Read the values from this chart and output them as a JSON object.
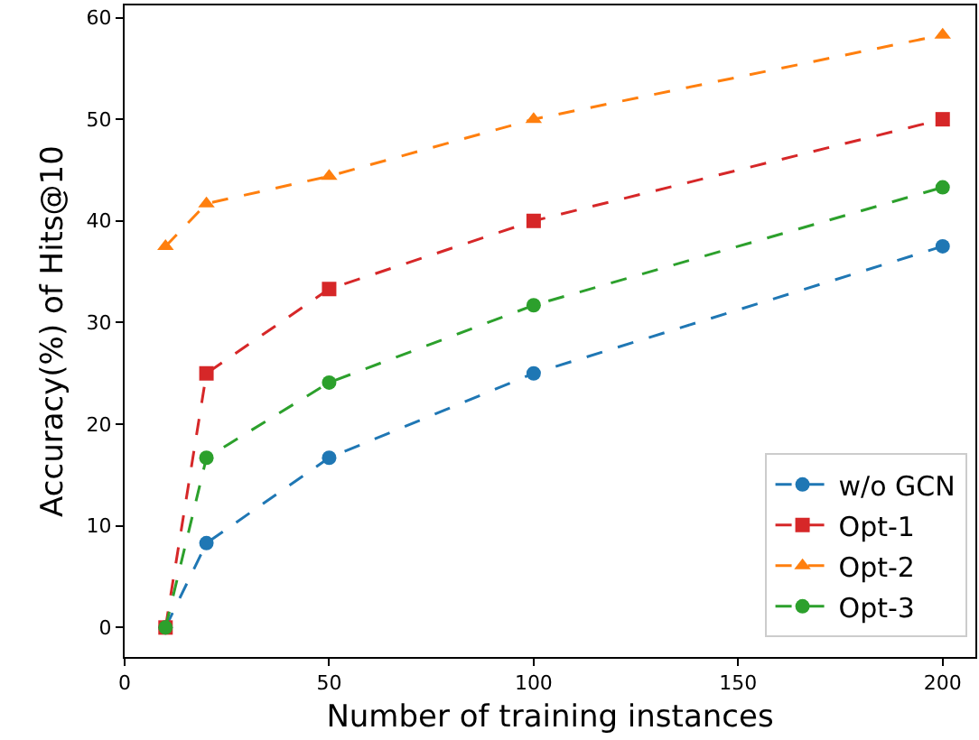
{
  "chart_data": {
    "type": "line",
    "xlabel": "Number of training instances",
    "ylabel": "Accuracy(%) of Hits@10",
    "x": [
      10,
      20,
      50,
      100,
      200
    ],
    "series": [
      {
        "name": "w/o GCN",
        "color": "#1f77b4",
        "marker": "circle",
        "values": [
          0,
          8.3,
          16.7,
          25,
          37.5
        ]
      },
      {
        "name": "Opt-1",
        "color": "#d62728",
        "marker": "square",
        "values": [
          0,
          25,
          33.3,
          40,
          50
        ]
      },
      {
        "name": "Opt-2",
        "color": "#ff7f0e",
        "marker": "triangle",
        "values": [
          37.5,
          41.7,
          44.4,
          50,
          58.3
        ]
      },
      {
        "name": "Opt-3",
        "color": "#2ca02c",
        "marker": "circle",
        "values": [
          0,
          16.7,
          24.1,
          31.7,
          43.3
        ]
      }
    ],
    "xlim": [
      0,
      208
    ],
    "xticks": [
      0,
      50,
      100,
      150,
      200
    ],
    "ylim": [
      -2.9,
      61.2
    ],
    "yticks": [
      0,
      10,
      20,
      30,
      40,
      50,
      60
    ],
    "line_style": "dashed",
    "legend": "bottom right",
    "grid": false
  }
}
